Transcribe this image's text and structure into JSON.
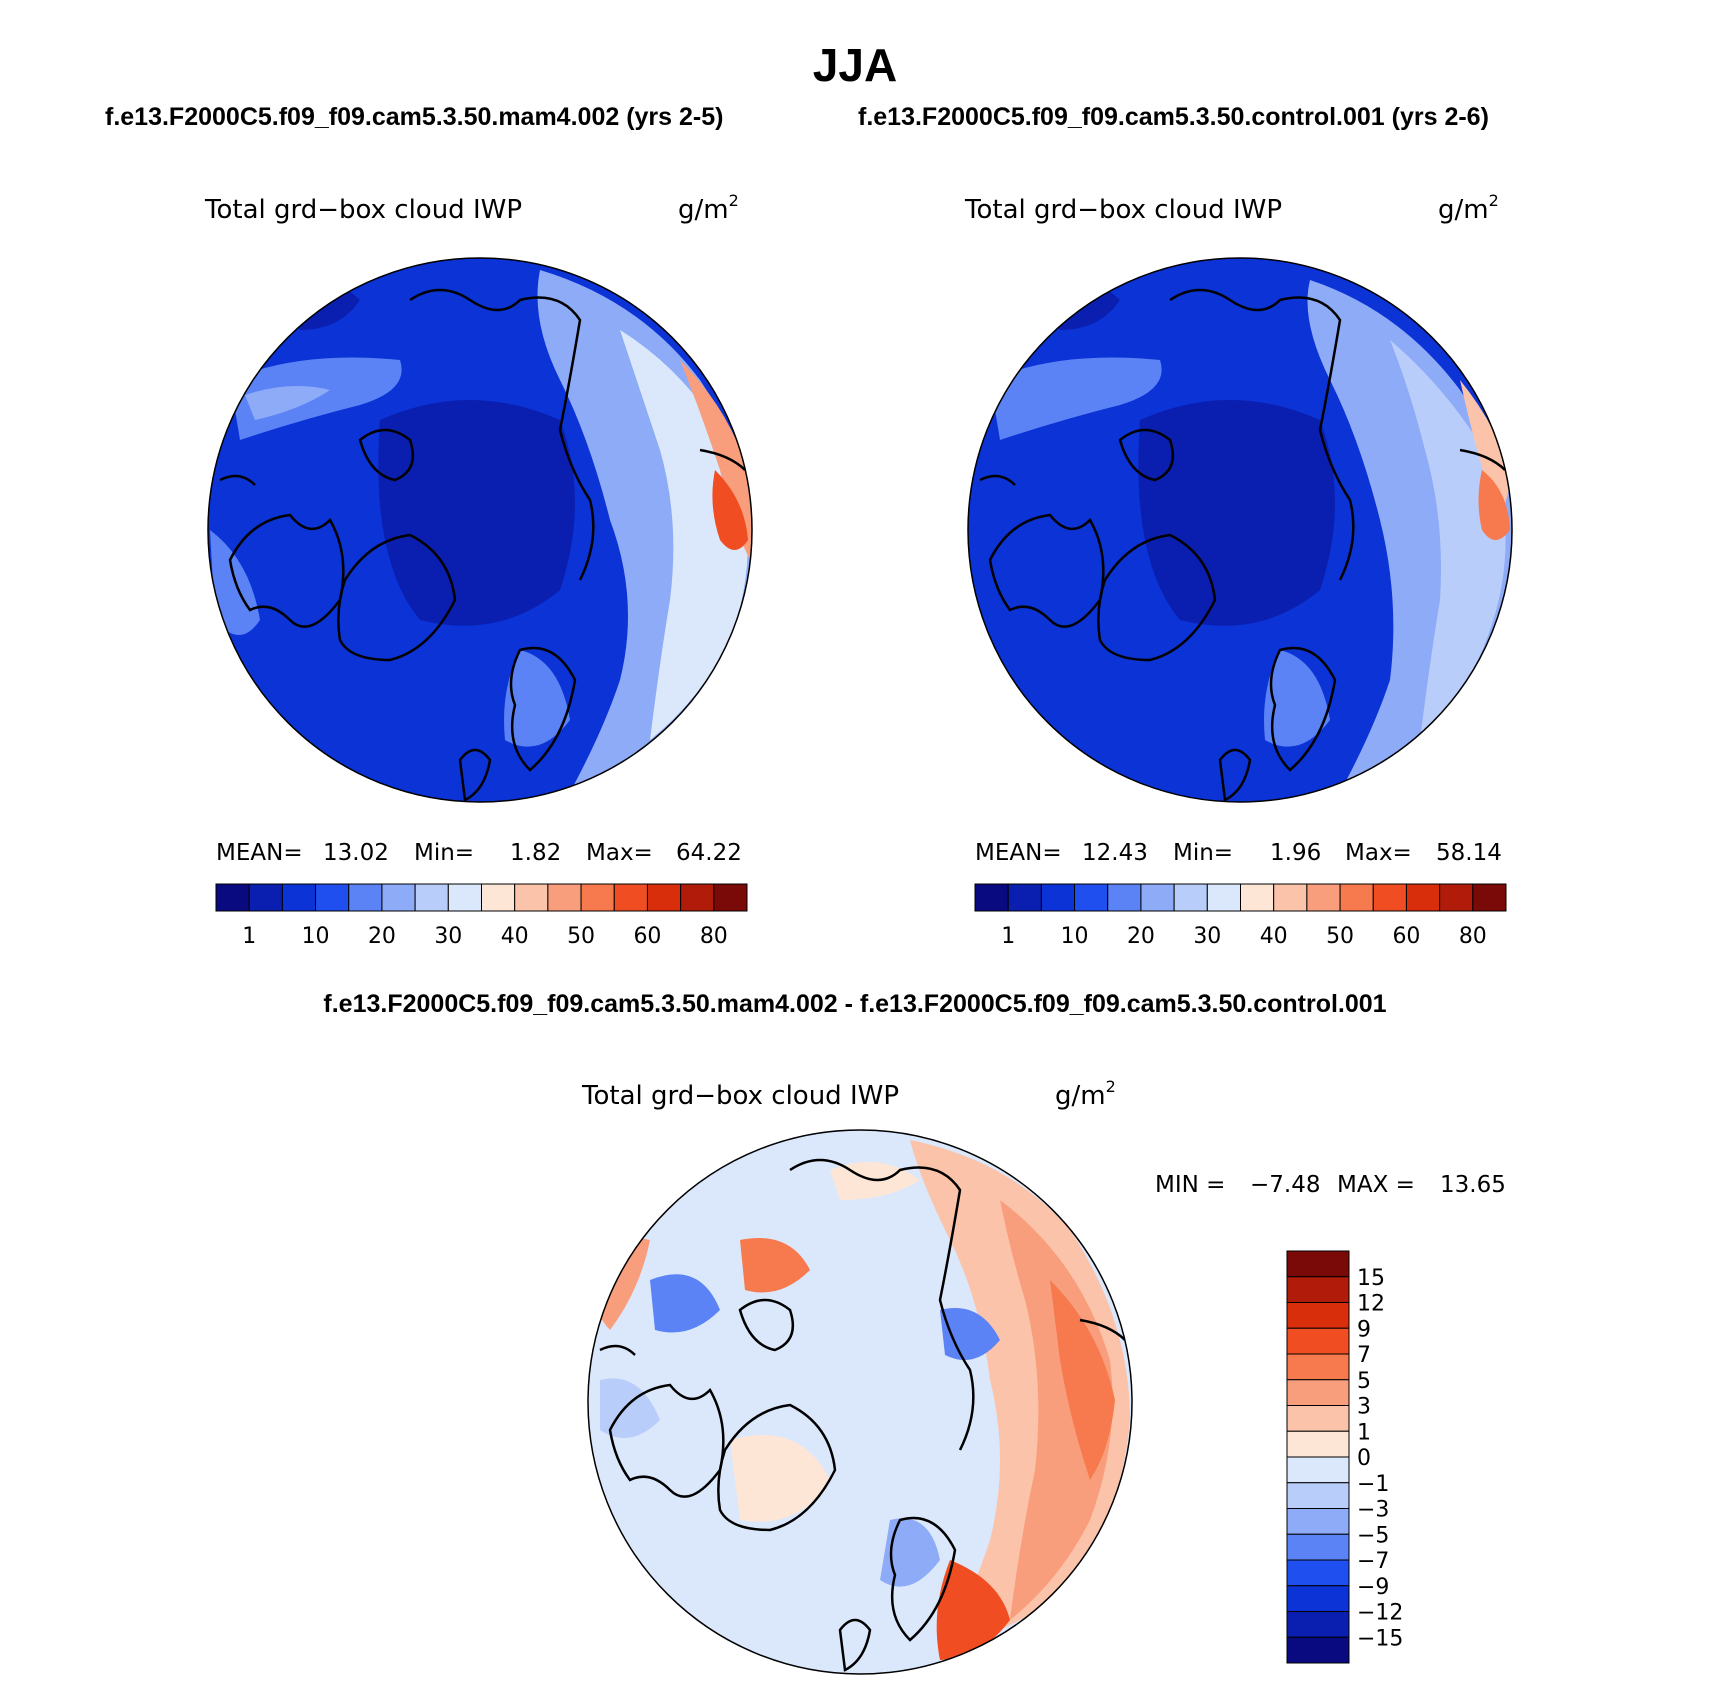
{
  "header": {
    "season": "JJA",
    "case_a": "f.e13.F2000C5.f09_f09.cam5.3.50.mam4.002 (yrs 2-5)",
    "case_b": "f.e13.F2000C5.f09_f09.cam5.3.50.control.001 (yrs 2-6)",
    "diff_title": "f.e13.F2000C5.f09_f09.cam5.3.50.mam4.002 - f.e13.F2000C5.f09_f09.cam5.3.50.control.001"
  },
  "panels": [
    {
      "variable": "Total grd−box cloud IWP",
      "units_base": "g/m",
      "units_exp": "2",
      "stats": {
        "mean_label": "MEAN=",
        "mean": "13.02",
        "min_label": "Min=",
        "min": "1.82",
        "max_label": "Max=",
        "max": "64.22"
      }
    },
    {
      "variable": "Total grd−box cloud IWP",
      "units_base": "g/m",
      "units_exp": "2",
      "stats": {
        "mean_label": "MEAN=",
        "mean": "12.43",
        "min_label": "Min=",
        "min": "1.96",
        "max_label": "Max=",
        "max": "58.14"
      }
    }
  ],
  "diff_panel": {
    "variable": "Total grd−box cloud IWP",
    "units_base": "g/m",
    "units_exp": "2",
    "min_label": "MIN =",
    "min": "−7.48",
    "max_label": "MAX =",
    "max": "13.65"
  },
  "colorbar_main": {
    "colors": [
      "#0a0a80",
      "#0a1fb0",
      "#0b33d6",
      "#1f4fee",
      "#5b83f5",
      "#8eabf7",
      "#b9cdfa",
      "#dbe8fc",
      "#fde6d6",
      "#fbc4aa",
      "#f99e7c",
      "#f67a4d",
      "#f04e22",
      "#d92e0c",
      "#b01b0a",
      "#7a0a08"
    ],
    "labels": [
      "1",
      "10",
      "20",
      "30",
      "40",
      "50",
      "60",
      "80"
    ]
  },
  "colorbar_diff": {
    "colors": [
      "#7a0a08",
      "#b01b0a",
      "#d92e0c",
      "#f04e22",
      "#f67a4d",
      "#f99e7c",
      "#fbc4aa",
      "#fde6d6",
      "#dbe8fc",
      "#b9cdfa",
      "#8eabf7",
      "#5b83f5",
      "#1f4fee",
      "#0b33d6",
      "#0a1fb0",
      "#0a0a80"
    ],
    "labels": [
      "15",
      "12",
      "9",
      "7",
      "5",
      "3",
      "1",
      "0",
      "−1",
      "−3",
      "−5",
      "−7",
      "−9",
      "−12",
      "−15"
    ]
  }
}
